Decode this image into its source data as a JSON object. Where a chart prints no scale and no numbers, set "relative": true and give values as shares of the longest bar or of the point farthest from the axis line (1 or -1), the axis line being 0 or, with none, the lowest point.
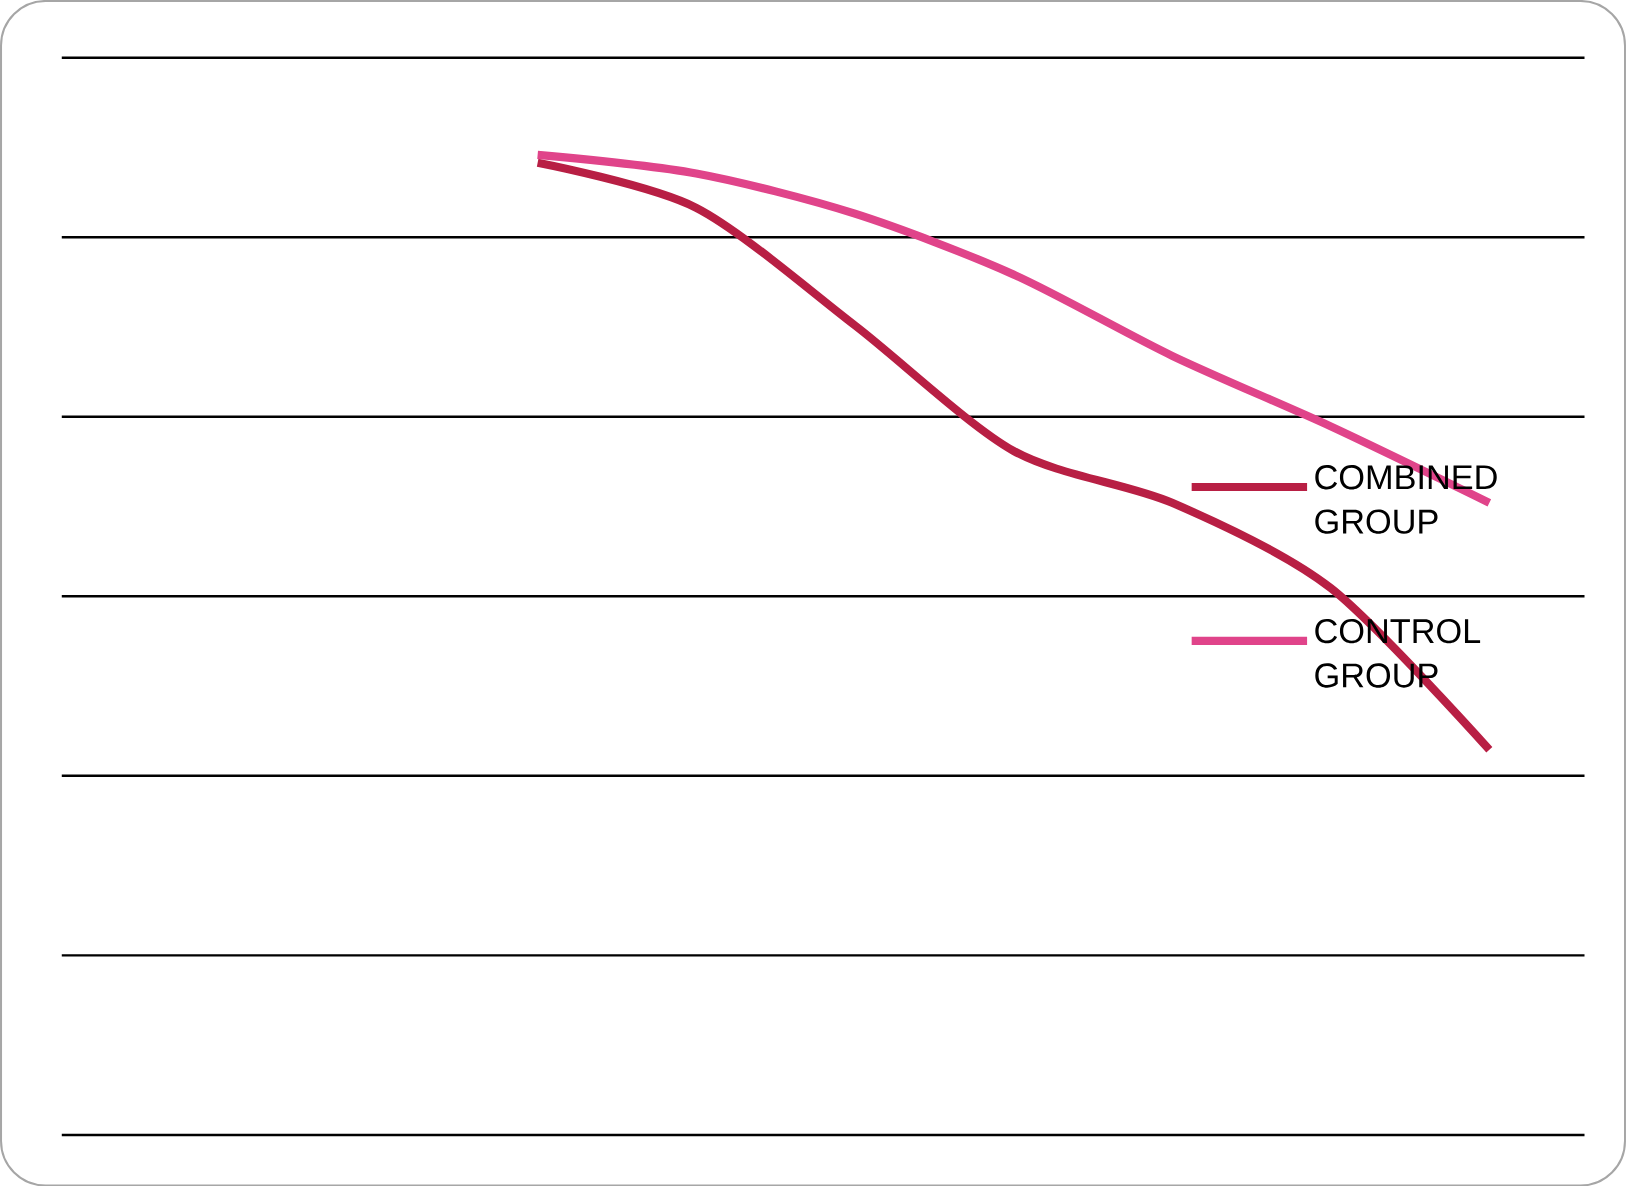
{
  "chart_data": {
    "type": "line",
    "relative": true,
    "categories": [
      null,
      null,
      null,
      null,
      null,
      null,
      null
    ],
    "series": [
      {
        "name": "COMBINED GROUP",
        "color": "#b81f44",
        "values": [
          0.992,
          0.946,
          0.826,
          0.698,
          0.645,
          0.558,
          0.393
        ]
      },
      {
        "name": "CONTROL GROUP",
        "color": "#e0448a",
        "values": [
          1,
          0.981,
          0.94,
          0.878,
          0.795,
          0.723,
          0.645
        ]
      }
    ],
    "grid": "y",
    "legend": "right",
    "marker": "none",
    "line_style": "solid"
  }
}
